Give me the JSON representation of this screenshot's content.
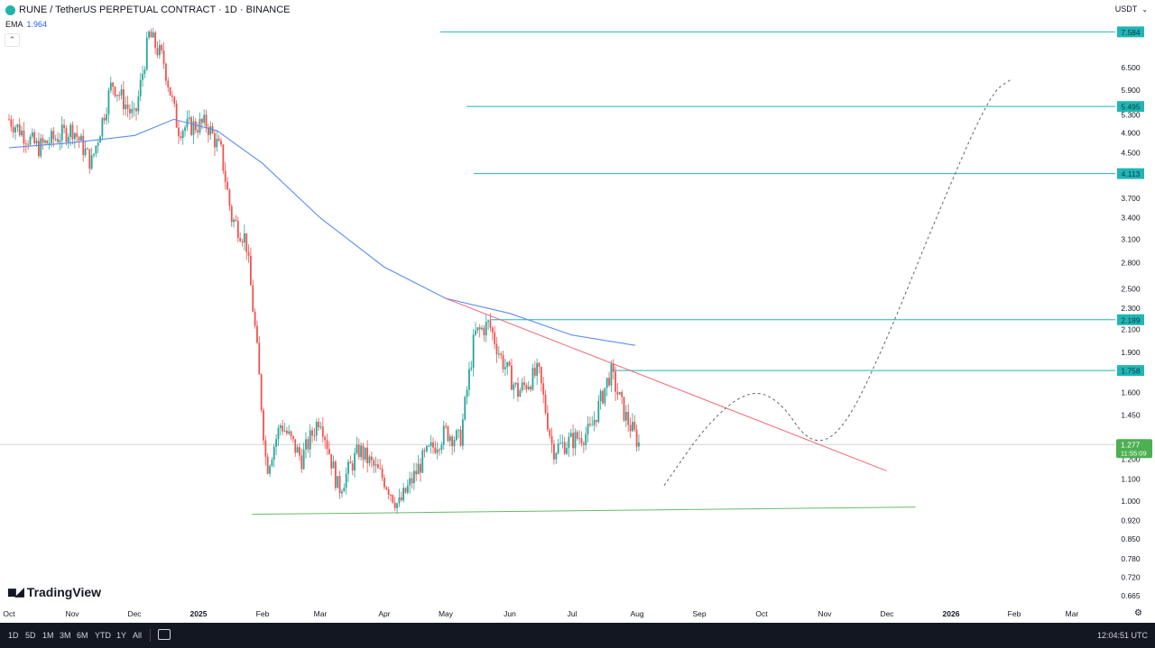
{
  "header": {
    "symbol": "RUNE / TetherUS PERPETUAL CONTRACT · 1D · BINANCE",
    "ema_label": "EMA",
    "ema_value": "1.964",
    "currency": "USDT"
  },
  "chart_data": {
    "type": "candlestick",
    "price_axis_ticks": [
      "6.500",
      "5.900",
      "5.300",
      "4.900",
      "4.500",
      "3.700",
      "3.400",
      "3.100",
      "2.800",
      "2.500",
      "2.300",
      "2.100",
      "1.900",
      "1.600",
      "1.450",
      "1.200",
      "1.100",
      "1.000",
      "0.920",
      "0.850",
      "0.780",
      "0.720",
      "0.665"
    ],
    "time_axis_labels": [
      "Oct",
      "Nov",
      "Dec",
      "2025",
      "Feb",
      "Mar",
      "Apr",
      "May",
      "Jun",
      "Jul",
      "Aug",
      "Sep",
      "Oct",
      "Nov",
      "Dec",
      "2026",
      "Feb",
      "Mar"
    ],
    "horizontal_levels": [
      {
        "label": "7.584",
        "value": 7.584
      },
      {
        "label": "5.495",
        "value": 5.495
      },
      {
        "label": "4.113",
        "value": 4.113
      },
      {
        "label": "2.189",
        "value": 2.189
      },
      {
        "label": "1.758",
        "value": 1.758
      }
    ],
    "current_price": {
      "label": "1.277",
      "countdown": "11:55:09",
      "value": 1.277
    },
    "ema_series": [
      {
        "date": "2024-10-01",
        "value": 4.6
      },
      {
        "date": "2024-11-01",
        "value": 4.7
      },
      {
        "date": "2024-12-01",
        "value": 4.85
      },
      {
        "date": "2024-12-20",
        "value": 5.2
      },
      {
        "date": "2025-01-10",
        "value": 4.95
      },
      {
        "date": "2025-02-01",
        "value": 4.3
      },
      {
        "date": "2025-03-01",
        "value": 3.4
      },
      {
        "date": "2025-04-01",
        "value": 2.75
      },
      {
        "date": "2025-05-01",
        "value": 2.4
      },
      {
        "date": "2025-06-01",
        "value": 2.25
      },
      {
        "date": "2025-07-01",
        "value": 2.05
      },
      {
        "date": "2025-08-01",
        "value": 1.96
      }
    ],
    "price_series": [
      {
        "date": "2024-10-01",
        "value": 5.2
      },
      {
        "date": "2024-10-15",
        "value": 4.6
      },
      {
        "date": "2024-11-01",
        "value": 5.0
      },
      {
        "date": "2024-11-10",
        "value": 4.3
      },
      {
        "date": "2024-11-20",
        "value": 6.1
      },
      {
        "date": "2024-12-01",
        "value": 5.2
      },
      {
        "date": "2024-12-08",
        "value": 7.5
      },
      {
        "date": "2024-12-15",
        "value": 6.7
      },
      {
        "date": "2024-12-22",
        "value": 5.0
      },
      {
        "date": "2025-01-05",
        "value": 5.1
      },
      {
        "date": "2025-01-12",
        "value": 4.5
      },
      {
        "date": "2025-01-17",
        "value": 3.4
      },
      {
        "date": "2025-01-24",
        "value": 3.1
      },
      {
        "date": "2025-01-29",
        "value": 2.0
      },
      {
        "date": "2025-02-03",
        "value": 1.15
      },
      {
        "date": "2025-02-10",
        "value": 1.4
      },
      {
        "date": "2025-02-20",
        "value": 1.2
      },
      {
        "date": "2025-03-01",
        "value": 1.45
      },
      {
        "date": "2025-03-10",
        "value": 1.05
      },
      {
        "date": "2025-03-20",
        "value": 1.25
      },
      {
        "date": "2025-04-01",
        "value": 1.1
      },
      {
        "date": "2025-04-08",
        "value": 0.98
      },
      {
        "date": "2025-04-20",
        "value": 1.2
      },
      {
        "date": "2025-05-01",
        "value": 1.35
      },
      {
        "date": "2025-05-08",
        "value": 1.3
      },
      {
        "date": "2025-05-15",
        "value": 2.05
      },
      {
        "date": "2025-05-22",
        "value": 2.15
      },
      {
        "date": "2025-05-28",
        "value": 1.85
      },
      {
        "date": "2025-06-05",
        "value": 1.6
      },
      {
        "date": "2025-06-15",
        "value": 1.75
      },
      {
        "date": "2025-06-22",
        "value": 1.25
      },
      {
        "date": "2025-07-01",
        "value": 1.3
      },
      {
        "date": "2025-07-10",
        "value": 1.35
      },
      {
        "date": "2025-07-20",
        "value": 1.75
      },
      {
        "date": "2025-07-27",
        "value": 1.45
      },
      {
        "date": "2025-08-03",
        "value": 1.277
      }
    ],
    "projection": [
      {
        "date": "2025-08-15",
        "value": 1.07
      },
      {
        "date": "2025-09-05",
        "value": 1.4
      },
      {
        "date": "2025-09-25",
        "value": 1.62
      },
      {
        "date": "2025-10-10",
        "value": 1.55
      },
      {
        "date": "2025-10-25",
        "value": 1.27
      },
      {
        "date": "2025-11-10",
        "value": 1.35
      },
      {
        "date": "2025-12-01",
        "value": 2.0
      },
      {
        "date": "2025-12-25",
        "value": 3.4
      },
      {
        "date": "2026-01-20",
        "value": 5.8
      },
      {
        "date": "2026-01-31",
        "value": 6.2
      }
    ],
    "trendline_resistance": [
      {
        "date": "2025-05-01",
        "value": 2.4
      },
      {
        "date": "2025-12-01",
        "value": 1.14
      }
    ],
    "trendline_support": [
      {
        "date": "2025-01-27",
        "value": 0.945
      },
      {
        "date": "2025-12-15",
        "value": 0.975
      }
    ]
  },
  "branding": {
    "logo": "TradingView"
  },
  "bottom_bar": {
    "ranges": [
      "1D",
      "5D",
      "1M",
      "3M",
      "6M",
      "YTD",
      "1Y",
      "All"
    ],
    "clock": "12:04:51 UTC"
  },
  "colors": {
    "ema": "#5b8def",
    "up": "#26a69a",
    "down": "#ef5350",
    "levels": "#22b5b5",
    "resistance": "#f06a7a",
    "support": "#66bb6a",
    "price_tag": "#4caf50"
  }
}
